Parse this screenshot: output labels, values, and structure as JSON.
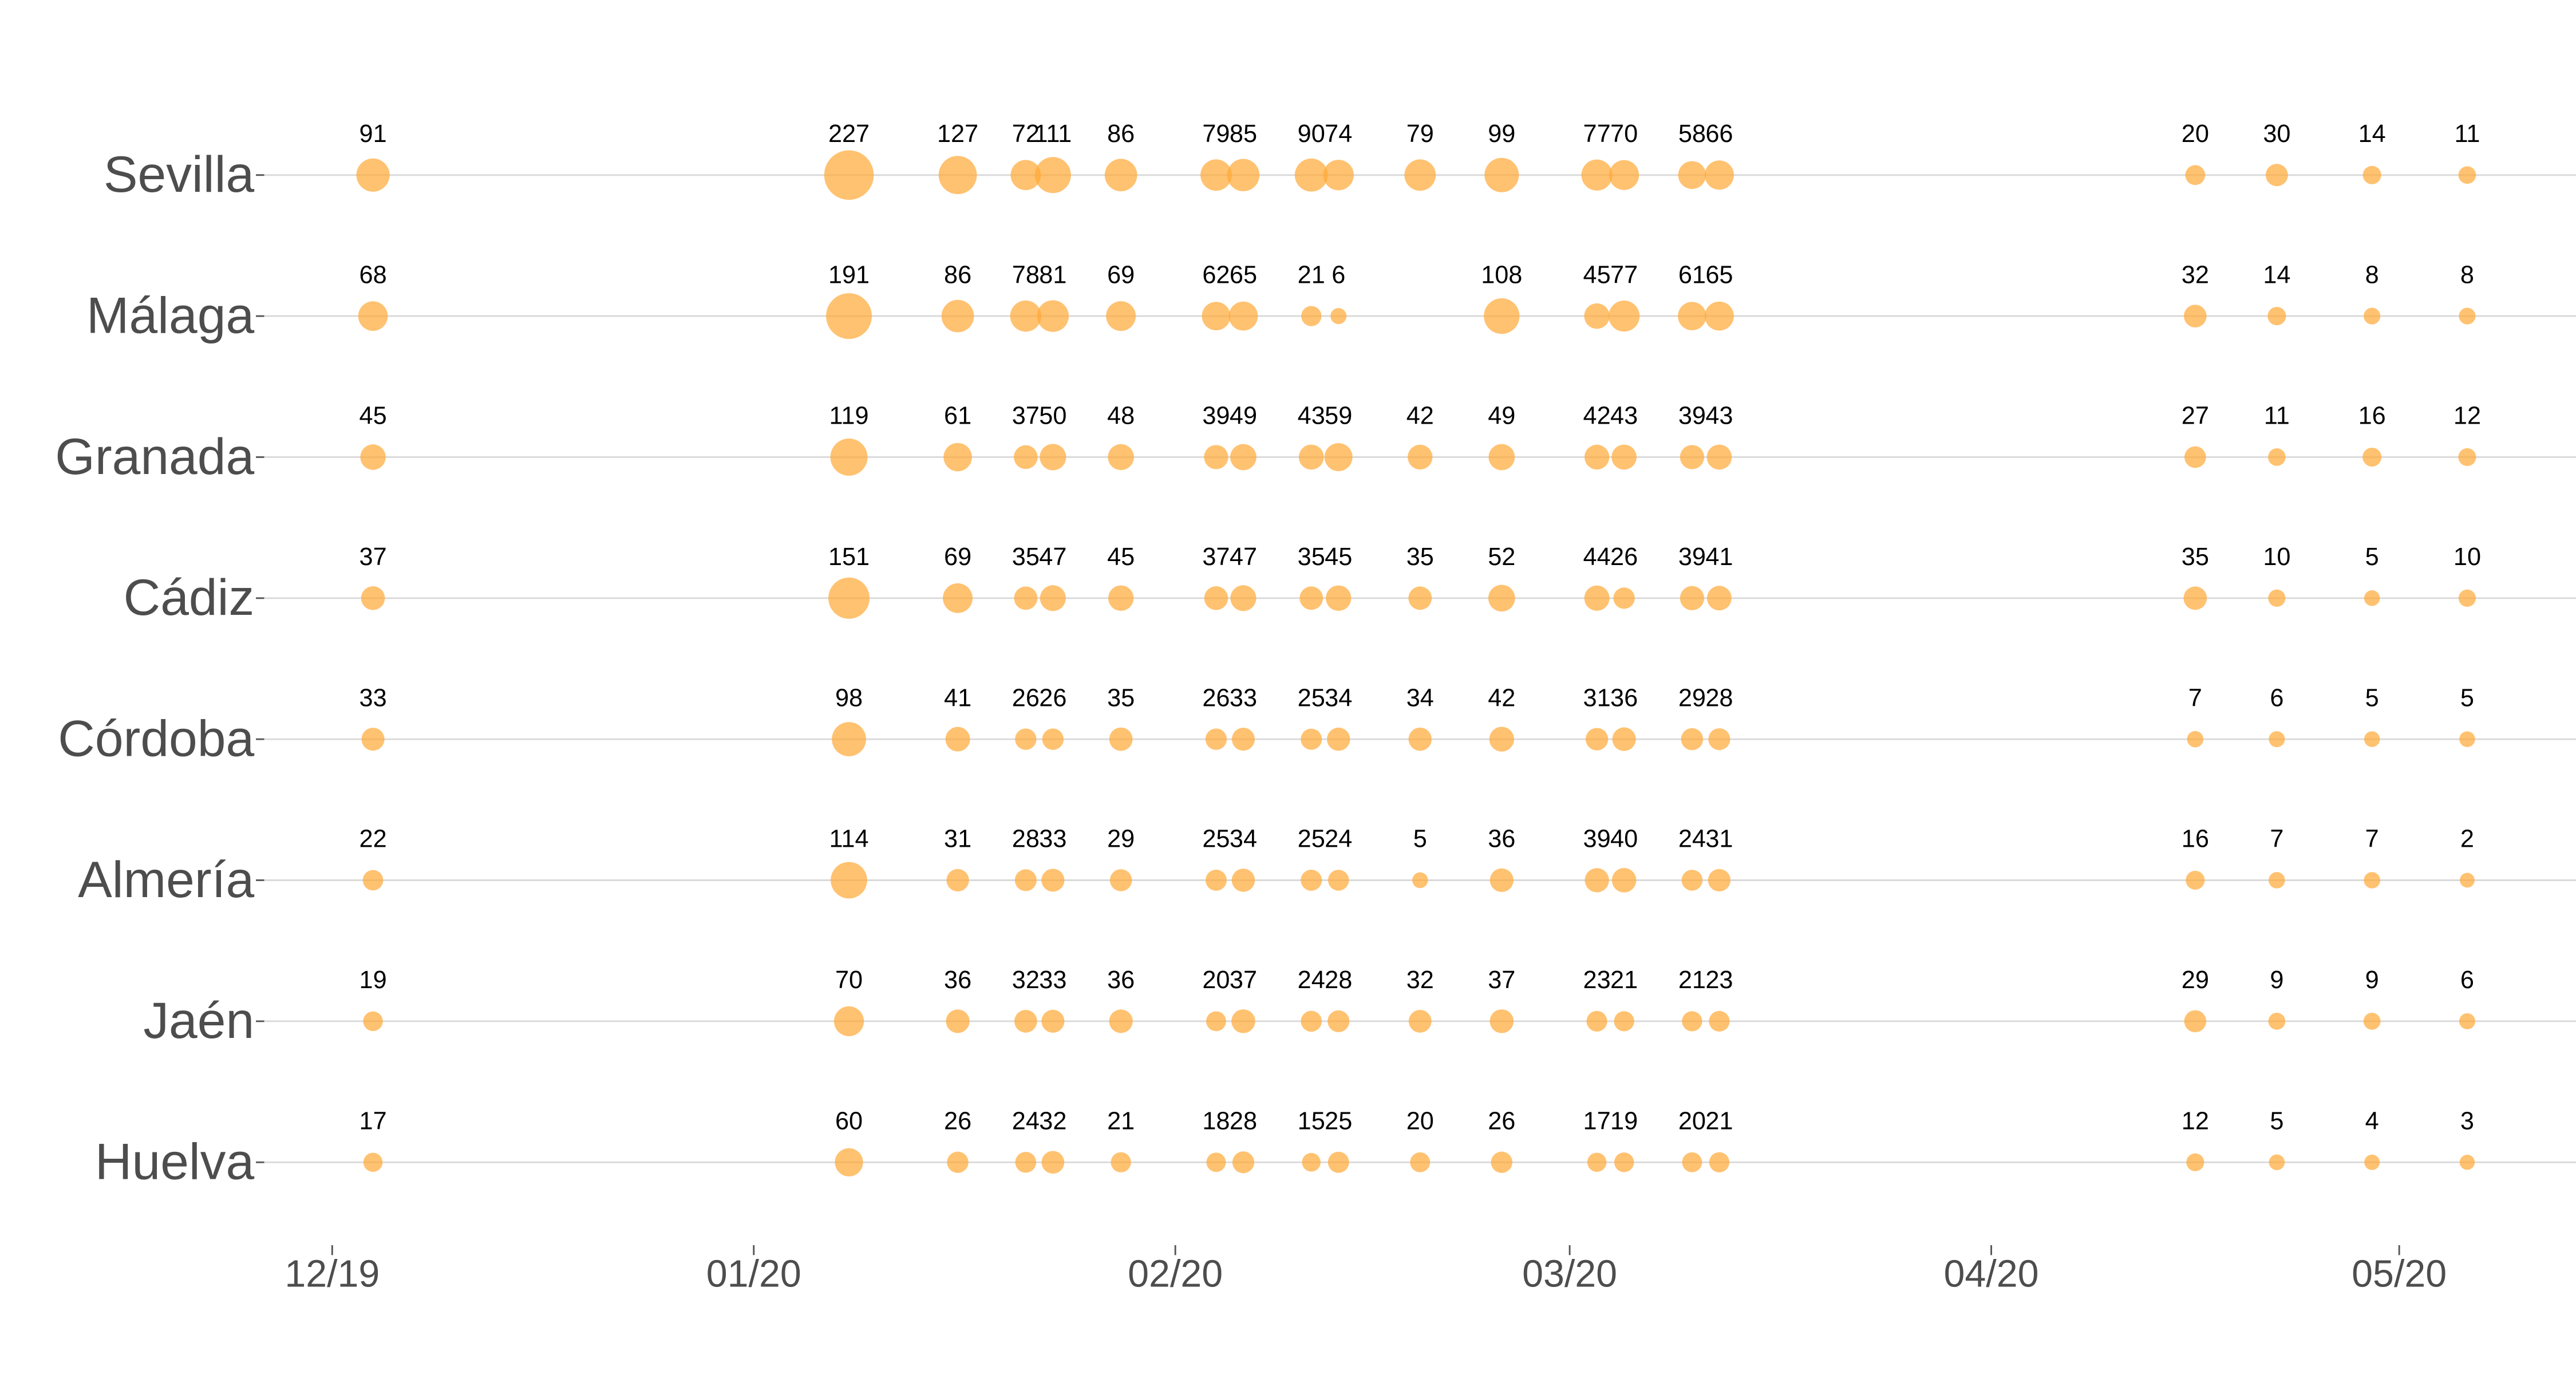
{
  "chart_data": {
    "type": "bubble",
    "x": [
      3,
      38,
      46,
      51,
      53,
      58,
      65,
      67,
      72,
      74,
      80,
      86,
      93,
      95,
      100,
      102,
      137,
      143,
      150,
      157
    ],
    "xlim": [
      -5,
      165
    ],
    "xticks": [
      {
        "value": 0,
        "label": "12/19"
      },
      {
        "value": 31,
        "label": "01/20"
      },
      {
        "value": 62,
        "label": "02/20"
      },
      {
        "value": 91,
        "label": "03/20"
      },
      {
        "value": 122,
        "label": "04/20"
      },
      {
        "value": 152,
        "label": "05/20"
      }
    ],
    "color": "#ffa834",
    "grid": true,
    "series": [
      {
        "name": "Sevilla",
        "values": [
          91,
          227,
          127,
          72,
          111,
          86,
          79,
          85,
          90,
          74,
          79,
          99,
          77,
          70,
          58,
          66,
          20,
          30,
          14,
          11
        ]
      },
      {
        "name": "Málaga",
        "values": [
          68,
          191,
          86,
          78,
          81,
          69,
          62,
          65,
          21,
          6,
          null,
          108,
          45,
          77,
          61,
          65,
          32,
          14,
          8,
          8
        ]
      },
      {
        "name": "Granada",
        "values": [
          45,
          119,
          61,
          37,
          50,
          48,
          39,
          49,
          43,
          59,
          42,
          49,
          42,
          43,
          39,
          43,
          27,
          11,
          16,
          12
        ]
      },
      {
        "name": "Cádiz",
        "values": [
          37,
          151,
          69,
          35,
          47,
          45,
          37,
          47,
          35,
          45,
          35,
          52,
          44,
          26,
          39,
          41,
          35,
          10,
          5,
          10
        ]
      },
      {
        "name": "Córdoba",
        "values": [
          33,
          98,
          41,
          26,
          26,
          35,
          26,
          33,
          25,
          34,
          34,
          42,
          31,
          36,
          29,
          28,
          7,
          6,
          5,
          5
        ]
      },
      {
        "name": "Almería",
        "values": [
          22,
          114,
          31,
          28,
          33,
          29,
          25,
          34,
          25,
          24,
          5,
          36,
          39,
          40,
          24,
          31,
          16,
          7,
          7,
          2
        ]
      },
      {
        "name": "Jaén",
        "values": [
          19,
          70,
          36,
          32,
          33,
          36,
          20,
          37,
          24,
          28,
          32,
          37,
          23,
          21,
          21,
          23,
          29,
          9,
          9,
          6
        ]
      },
      {
        "name": "Huelva",
        "values": [
          17,
          60,
          26,
          24,
          32,
          21,
          18,
          28,
          15,
          25,
          20,
          26,
          17,
          19,
          20,
          21,
          12,
          5,
          4,
          3
        ]
      }
    ]
  }
}
